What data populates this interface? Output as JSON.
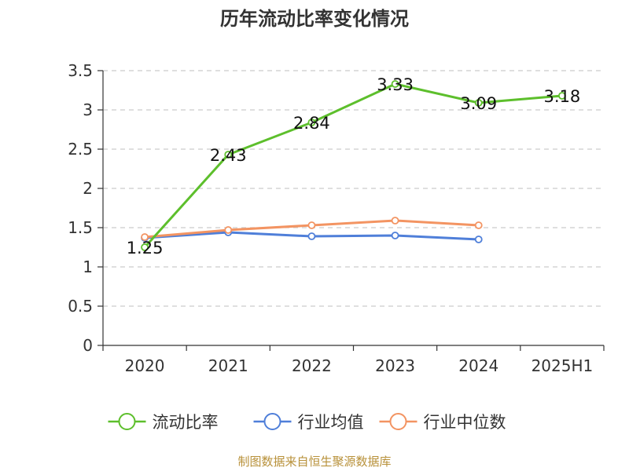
{
  "title": "历年流动比率变化情况",
  "source": "制图数据来自恒生聚源数据库",
  "chart_data": {
    "type": "line",
    "categories": [
      "2020",
      "2021",
      "2022",
      "2023",
      "2024",
      "2025H1"
    ],
    "ylim": [
      0,
      3.5
    ],
    "yticks": [
      "0",
      "0.5",
      "1",
      "1.5",
      "2",
      "2.5",
      "3",
      "3.5"
    ],
    "grid": "horizontal dashed",
    "legend_position": "bottom",
    "series": [
      {
        "name": "流动比率",
        "color": "#5dbf2c",
        "values": [
          1.25,
          2.43,
          2.84,
          3.33,
          3.09,
          3.18
        ],
        "labels": [
          "1.25",
          "2.43",
          "2.84",
          "3.33",
          "3.09",
          "3.18"
        ]
      },
      {
        "name": "行业均值",
        "color": "#4f7fd9",
        "values": [
          1.37,
          1.44,
          1.39,
          1.4,
          1.35,
          null
        ]
      },
      {
        "name": "行业中位数",
        "color": "#f39462",
        "values": [
          1.38,
          1.47,
          1.53,
          1.59,
          1.53,
          null
        ]
      }
    ]
  }
}
